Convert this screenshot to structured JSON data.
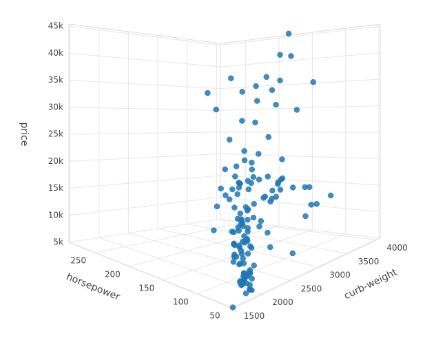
{
  "chart_data": {
    "type": "scatter3d",
    "color": "#1f77b4",
    "x_label": "curb-weight",
    "y_label": "horsepower",
    "z_label": "price",
    "xlim": [
      1488,
      4066
    ],
    "ylim": [
      48,
      288
    ],
    "zlim": [
      5000,
      45400
    ],
    "xticks": [
      1500,
      2000,
      2500,
      3000,
      3500,
      4000
    ],
    "yticks": [
      50,
      100,
      150,
      200,
      250
    ],
    "zticks": [
      {
        "value": 5000,
        "label": "5k"
      },
      {
        "value": 10000,
        "label": "10k"
      },
      {
        "value": 15000,
        "label": "15k"
      },
      {
        "value": 20000,
        "label": "20k"
      },
      {
        "value": 25000,
        "label": "25k"
      },
      {
        "value": 30000,
        "label": "30k"
      },
      {
        "value": 35000,
        "label": "35k"
      },
      {
        "value": 40000,
        "label": "40k"
      },
      {
        "value": 45000,
        "label": "45k"
      }
    ],
    "x": [
      1488,
      1874,
      1900,
      1909,
      1918,
      1940,
      1945,
      1950,
      1956,
      1967,
      1989,
      2004,
      2010,
      2015,
      2028,
      2037,
      2050,
      2081,
      2094,
      2109,
      2120,
      2128,
      2140,
      2145,
      2191,
      2204,
      2212,
      2236,
      2240,
      2254,
      2265,
      2290,
      2300,
      2300,
      2304,
      2319,
      2326,
      2337,
      2340,
      2365,
      2385,
      2403,
      2410,
      2414,
      2425,
      2443,
      2460,
      2480,
      2500,
      2535,
      2545,
      2560,
      2579,
      2658,
      2661,
      2695,
      2700,
      2714,
      2756,
      2778,
      2800,
      2823,
      2844,
      2910,
      2921,
      2935,
      2952,
      2975,
      3016,
      3034,
      3053,
      3060,
      3071,
      3131,
      3139,
      3151,
      3157,
      3197,
      3230,
      3252,
      3285,
      3296,
      3366,
      3380,
      3430,
      3485,
      3495,
      3505,
      3515,
      3740,
      3750,
      3770,
      3900,
      3930,
      3950,
      4066,
      3900,
      3715,
      2800,
      2920,
      3750,
      3505,
      3252,
      2017,
      1905,
      1876,
      1876,
      2017,
      1971,
      2100,
      2190,
      2255,
      2275,
      2310,
      2395,
      2470,
      2530,
      2580,
      2650,
      2710,
      2770,
      2830,
      2900,
      3095,
      3110,
      3220,
      3340,
      3410,
      3430,
      3600,
      1819,
      1837,
      2145,
      2405,
      2480,
      2650,
      2870
    ],
    "y": [
      48,
      68,
      69,
      68,
      70,
      69,
      70,
      62,
      62,
      68,
      62,
      76,
      70,
      76,
      68,
      69,
      70,
      97,
      88,
      84,
      70,
      100,
      88,
      101,
      94,
      86,
      97,
      101,
      110,
      111,
      86,
      90,
      102,
      95,
      145,
      97,
      102,
      121,
      111,
      100,
      116,
      110,
      114,
      112,
      88,
      116,
      123,
      110,
      92,
      160,
      116,
      116,
      121,
      152,
      116,
      161,
      95,
      145,
      110,
      175,
      160,
      97,
      154,
      110,
      160,
      162,
      145,
      152,
      111,
      176,
      142,
      114,
      152,
      114,
      200,
      161,
      162,
      176,
      123,
      160,
      184,
      207,
      155,
      176,
      200,
      123,
      155,
      184,
      207,
      182,
      207,
      123,
      184,
      207,
      262,
      182,
      184,
      155,
      184,
      207,
      95,
      95,
      90,
      69,
      58,
      70,
      70,
      76,
      68,
      90,
      102,
      110,
      97,
      116,
      112,
      120,
      114,
      85,
      95,
      121,
      68,
      114,
      110,
      114,
      134,
      106,
      134,
      95,
      106,
      114,
      48,
      58,
      94,
      123,
      121,
      123,
      160
    ],
    "z": [
      5151,
      6295,
      6229,
      6479,
      6692,
      7129,
      6855,
      5572,
      5399,
      6189,
      7099,
      6918,
      7295,
      7395,
      7609,
      8058,
      7499,
      8238,
      8249,
      8358,
      8449,
      8845,
      8921,
      9095,
      9279,
      9538,
      9639,
      9959,
      10198,
      10245,
      10295,
      10345,
      10698,
      11048,
      11245,
      11259,
      11549,
      11694,
      12170,
      12290,
      12440,
      12764,
      12945,
      13200,
      13295,
      13415,
      13499,
      13645,
      13860,
      14399,
      14869,
      15040,
      15250,
      15580,
      15690,
      15998,
      16500,
      16558,
      16630,
      16695,
      16845,
      16900,
      17199,
      17450,
      17669,
      17710,
      17950,
      18150,
      18280,
      18344,
      18399,
      18420,
      18620,
      18920,
      19045,
      19699,
      20970,
      21105,
      22018,
      22470,
      22625,
      24565,
      25552,
      28176,
      28248,
      30760,
      31600,
      32250,
      34028,
      34184,
      35056,
      35550,
      36000,
      36880,
      37028,
      40960,
      41315,
      45400,
      31400,
      34184,
      13860,
      13200,
      12000,
      7775,
      6575,
      6649,
      6849,
      7349,
      7299,
      7999,
      8495,
      9989,
      10795,
      11850,
      13950,
      14489,
      11900,
      9233,
      11199,
      12945,
      7898,
      16515,
      15985,
      16925,
      18950,
      17075,
      17710,
      13415,
      16430,
      15750,
      6488,
      5499,
      10898,
      15645,
      19699,
      18150,
      20970
    ]
  }
}
